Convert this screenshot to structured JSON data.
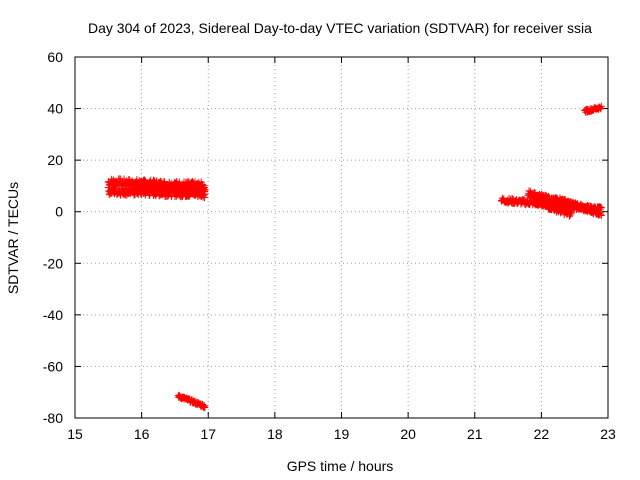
{
  "chart_data": {
    "type": "scatter",
    "title": "Day 304 of 2023, Sidereal Day-to-day VTEC variation (SDTVAR) for receiver ssia",
    "xlabel": "GPS time / hours",
    "ylabel": "SDTVAR / TECUs",
    "xlim": [
      15,
      23
    ],
    "ylim": [
      -80,
      60
    ],
    "x_ticks": [
      15,
      16,
      17,
      18,
      19,
      20,
      21,
      22,
      23
    ],
    "y_ticks": [
      -80,
      -60,
      -40,
      -20,
      0,
      20,
      40,
      60
    ],
    "grid": true,
    "marker": "+",
    "color": "#ff0000",
    "series": [
      {
        "name": "SDTVAR",
        "segments": [
          {
            "x_start": 15.5,
            "x_end": 16.95,
            "y_start": 11.5,
            "y_end": 10.0,
            "spread": 1.5
          },
          {
            "x_start": 15.5,
            "x_end": 16.95,
            "y_start": 8.0,
            "y_end": 7.0,
            "spread": 1.5
          },
          {
            "x_start": 15.9,
            "x_end": 16.95,
            "y_start": 10.5,
            "y_end": 8.0,
            "spread": 1.5
          },
          {
            "x_start": 16.55,
            "x_end": 16.95,
            "y_start": -71.5,
            "y_end": -75.5,
            "spread": 0.6
          },
          {
            "x_start": 21.4,
            "x_end": 22.9,
            "y_start": 4.5,
            "y_end": 1.0,
            "spread": 1.0
          },
          {
            "x_start": 21.8,
            "x_end": 22.9,
            "y_start": 7.0,
            "y_end": -0.5,
            "spread": 1.2
          },
          {
            "x_start": 21.9,
            "x_end": 22.45,
            "y_start": 4.0,
            "y_end": -1.0,
            "spread": 1.2
          },
          {
            "x_start": 22.2,
            "x_end": 22.85,
            "y_start": 5.0,
            "y_end": 0.0,
            "spread": 1.0
          },
          {
            "x_start": 22.65,
            "x_end": 22.9,
            "y_start": 39.0,
            "y_end": 40.5,
            "spread": 0.6
          }
        ]
      }
    ]
  }
}
